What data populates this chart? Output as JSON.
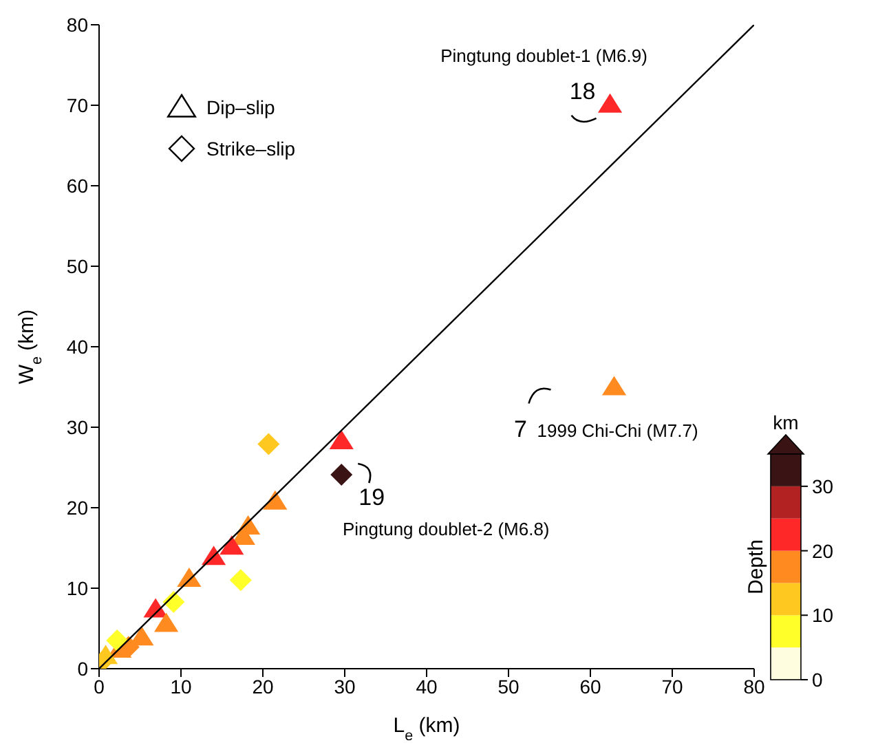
{
  "chart_data": {
    "type": "scatter",
    "xlabel": "L$_{e}$ (km)",
    "ylabel": "W$_{e}$ (km)",
    "clabel": "Depth",
    "xlim": [
      0,
      80
    ],
    "ylim": [
      0,
      80
    ],
    "xticks": [
      0,
      10,
      20,
      30,
      40,
      50,
      60,
      70,
      80
    ],
    "yticks": [
      0,
      10,
      20,
      30,
      40,
      50,
      60,
      70,
      80
    ],
    "clim": [
      0,
      35
    ],
    "cticks": [
      0,
      10,
      20,
      30
    ],
    "grid": false,
    "legend": "top left",
    "series": [
      {
        "name": "Dip–slip",
        "marker": "triangle",
        "x": [
          62.4,
          62.9,
          29.6,
          21.5,
          18.2,
          17.6,
          16.2,
          14.0,
          11.0,
          6.9,
          8.2,
          5.2,
          2.5,
          0.8
        ],
        "values": [
          70.1,
          35.0,
          28.3,
          20.8,
          17.7,
          16.4,
          15.2,
          13.9,
          11.2,
          7.4,
          5.6,
          3.9,
          2.4,
          1.6
        ],
        "colors": [
          "#ff2828",
          "#ff8a20",
          "#ff2828",
          "#ff8a20",
          "#ff8a20",
          "#ff8a20",
          "#ff2828",
          "#ff2828",
          "#ff8a20",
          "#ff2828",
          "#ff8a20",
          "#ff8a20",
          "#ff8a20",
          "#ffc820"
        ]
      },
      {
        "name": "Strike–slip",
        "marker": "diamond",
        "x": [
          20.7,
          29.6,
          17.3,
          9.1,
          3.6,
          2.2,
          0.5
        ],
        "values": [
          27.9,
          24.1,
          11.0,
          8.3,
          2.7,
          3.5,
          1.0
        ],
        "colors": [
          "#ffc820",
          "#3a1414",
          "#ffff2a",
          "#ffff2a",
          "#ff8a20",
          "#ffff2a",
          "#ffc820"
        ]
      },
      {
        "type": "line",
        "color": "#000000",
        "marker": "none",
        "x": [
          0,
          80
        ],
        "values": [
          0,
          80
        ]
      }
    ],
    "annotations": [
      {
        "text": "Pingtung doublet-1 (M6.9)",
        "x": 62.4,
        "y": 70.1
      },
      {
        "text": "18",
        "x": 62.4,
        "y": 70.1
      },
      "7",
      {
        "text": "1999 Chi-Chi (M7.7)",
        "x": 62.9,
        "y": 35.0
      },
      {
        "text": "19",
        "x": 29.6,
        "y": 24.1
      },
      {
        "text": "Pingtung doublet-2 (M6.8)",
        "x": 29.6,
        "y": 24.1
      },
      "km"
    ]
  }
}
